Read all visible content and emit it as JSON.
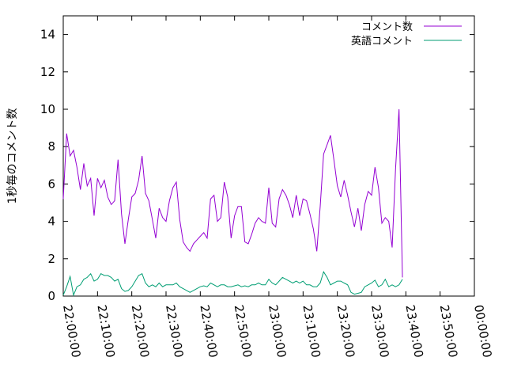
{
  "chart_data": {
    "type": "line",
    "title": "",
    "xlabel": "",
    "ylabel": "1秒毎のコメント数",
    "ylim": [
      0,
      15
    ],
    "yticks": [
      "0",
      "2",
      "4",
      "6",
      "8",
      "10",
      "12",
      "14"
    ],
    "xticks": [
      "22:00:00",
      "22:10:00",
      "22:20:00",
      "22:30:00",
      "22:40:00",
      "22:50:00",
      "23:00:00",
      "23:10:00",
      "23:20:00",
      "23:30:00",
      "23:40:00",
      "23:50:00",
      "00:00:00"
    ],
    "x_range_minutes": [
      0,
      120
    ],
    "grid": false,
    "legend_position": "top-right",
    "series": [
      {
        "name": "コメント数",
        "color": "#9400d3",
        "points": [
          [
            0,
            5.2
          ],
          [
            1,
            8.7
          ],
          [
            2,
            7.5
          ],
          [
            3,
            7.8
          ],
          [
            4,
            6.9
          ],
          [
            5,
            5.7
          ],
          [
            6,
            7.1
          ],
          [
            7,
            5.9
          ],
          [
            8,
            6.3
          ],
          [
            9,
            4.3
          ],
          [
            10,
            6.3
          ],
          [
            11,
            5.8
          ],
          [
            12,
            6.2
          ],
          [
            13,
            5.3
          ],
          [
            14,
            4.9
          ],
          [
            15,
            5.1
          ],
          [
            16,
            7.3
          ],
          [
            17,
            4.4
          ],
          [
            18,
            2.8
          ],
          [
            19,
            4.1
          ],
          [
            20,
            5.3
          ],
          [
            21,
            5.5
          ],
          [
            22,
            6.2
          ],
          [
            23,
            7.5
          ],
          [
            24,
            5.5
          ],
          [
            25,
            5.1
          ],
          [
            26,
            4.1
          ],
          [
            27,
            3.1
          ],
          [
            28,
            4.7
          ],
          [
            29,
            4.2
          ],
          [
            30,
            4.0
          ],
          [
            31,
            5.1
          ],
          [
            32,
            5.8
          ],
          [
            33,
            6.1
          ],
          [
            34,
            4.1
          ],
          [
            35,
            2.9
          ],
          [
            36,
            2.6
          ],
          [
            37,
            2.4
          ],
          [
            38,
            2.8
          ],
          [
            39,
            3.0
          ],
          [
            40,
            3.2
          ],
          [
            41,
            3.4
          ],
          [
            42,
            3.1
          ],
          [
            43,
            5.2
          ],
          [
            44,
            5.4
          ],
          [
            45,
            4.0
          ],
          [
            46,
            4.2
          ],
          [
            47,
            6.1
          ],
          [
            48,
            5.3
          ],
          [
            49,
            3.1
          ],
          [
            50,
            4.3
          ],
          [
            51,
            4.8
          ],
          [
            52,
            4.8
          ],
          [
            53,
            2.9
          ],
          [
            54,
            2.8
          ],
          [
            55,
            3.3
          ],
          [
            56,
            3.9
          ],
          [
            57,
            4.2
          ],
          [
            58,
            4.0
          ],
          [
            59,
            3.9
          ],
          [
            60,
            5.8
          ],
          [
            61,
            3.9
          ],
          [
            62,
            3.7
          ],
          [
            63,
            5.2
          ],
          [
            64,
            5.7
          ],
          [
            65,
            5.4
          ],
          [
            66,
            4.9
          ],
          [
            67,
            4.2
          ],
          [
            68,
            5.4
          ],
          [
            69,
            4.3
          ],
          [
            70,
            5.2
          ],
          [
            71,
            5.1
          ],
          [
            72,
            4.4
          ],
          [
            73,
            3.6
          ],
          [
            74,
            2.4
          ],
          [
            75,
            4.8
          ],
          [
            76,
            7.6
          ],
          [
            77,
            8.1
          ],
          [
            78,
            8.6
          ],
          [
            79,
            7.3
          ],
          [
            80,
            5.9
          ],
          [
            81,
            5.3
          ],
          [
            82,
            6.2
          ],
          [
            83,
            5.4
          ],
          [
            84,
            4.5
          ],
          [
            85,
            3.7
          ],
          [
            86,
            4.7
          ],
          [
            87,
            3.5
          ],
          [
            88,
            4.9
          ],
          [
            89,
            5.6
          ],
          [
            90,
            5.4
          ],
          [
            91,
            6.9
          ],
          [
            92,
            5.8
          ],
          [
            93,
            3.9
          ],
          [
            94,
            4.2
          ],
          [
            95,
            4.0
          ],
          [
            96,
            2.6
          ],
          [
            97,
            6.8
          ],
          [
            98,
            10.0
          ],
          [
            99,
            1.0
          ]
        ]
      },
      {
        "name": "英語コメント",
        "color": "#009e73",
        "points": [
          [
            0,
            0.05
          ],
          [
            1,
            0.5
          ],
          [
            2,
            1.05
          ],
          [
            3,
            0.05
          ],
          [
            4,
            0.5
          ],
          [
            5,
            0.6
          ],
          [
            6,
            0.9
          ],
          [
            7,
            1.0
          ],
          [
            8,
            1.2
          ],
          [
            9,
            0.8
          ],
          [
            10,
            0.9
          ],
          [
            11,
            1.2
          ],
          [
            12,
            1.1
          ],
          [
            13,
            1.1
          ],
          [
            14,
            1.0
          ],
          [
            15,
            0.8
          ],
          [
            16,
            0.9
          ],
          [
            17,
            0.4
          ],
          [
            18,
            0.25
          ],
          [
            19,
            0.3
          ],
          [
            20,
            0.5
          ],
          [
            21,
            0.8
          ],
          [
            22,
            1.1
          ],
          [
            23,
            1.2
          ],
          [
            24,
            0.7
          ],
          [
            25,
            0.5
          ],
          [
            26,
            0.6
          ],
          [
            27,
            0.5
          ],
          [
            28,
            0.7
          ],
          [
            29,
            0.5
          ],
          [
            30,
            0.6
          ],
          [
            31,
            0.6
          ],
          [
            32,
            0.6
          ],
          [
            33,
            0.7
          ],
          [
            34,
            0.5
          ],
          [
            35,
            0.4
          ],
          [
            36,
            0.3
          ],
          [
            37,
            0.2
          ],
          [
            38,
            0.3
          ],
          [
            39,
            0.4
          ],
          [
            40,
            0.5
          ],
          [
            41,
            0.55
          ],
          [
            42,
            0.5
          ],
          [
            43,
            0.7
          ],
          [
            44,
            0.6
          ],
          [
            45,
            0.5
          ],
          [
            46,
            0.6
          ],
          [
            47,
            0.6
          ],
          [
            48,
            0.5
          ],
          [
            49,
            0.5
          ],
          [
            50,
            0.55
          ],
          [
            51,
            0.6
          ],
          [
            52,
            0.5
          ],
          [
            53,
            0.55
          ],
          [
            54,
            0.5
          ],
          [
            55,
            0.6
          ],
          [
            56,
            0.6
          ],
          [
            57,
            0.7
          ],
          [
            58,
            0.6
          ],
          [
            59,
            0.6
          ],
          [
            60,
            0.9
          ],
          [
            61,
            0.7
          ],
          [
            62,
            0.6
          ],
          [
            63,
            0.8
          ],
          [
            64,
            1.0
          ],
          [
            65,
            0.9
          ],
          [
            66,
            0.8
          ],
          [
            67,
            0.7
          ],
          [
            68,
            0.8
          ],
          [
            69,
            0.7
          ],
          [
            70,
            0.8
          ],
          [
            71,
            0.6
          ],
          [
            72,
            0.6
          ],
          [
            73,
            0.5
          ],
          [
            74,
            0.5
          ],
          [
            75,
            0.7
          ],
          [
            76,
            1.3
          ],
          [
            77,
            1.0
          ],
          [
            78,
            0.6
          ],
          [
            79,
            0.7
          ],
          [
            80,
            0.8
          ],
          [
            81,
            0.8
          ],
          [
            82,
            0.7
          ],
          [
            83,
            0.6
          ],
          [
            84,
            0.2
          ],
          [
            85,
            0.1
          ],
          [
            86,
            0.15
          ],
          [
            87,
            0.2
          ],
          [
            88,
            0.5
          ],
          [
            89,
            0.6
          ],
          [
            90,
            0.7
          ],
          [
            91,
            0.85
          ],
          [
            92,
            0.5
          ],
          [
            93,
            0.6
          ],
          [
            94,
            0.9
          ],
          [
            95,
            0.5
          ],
          [
            96,
            0.6
          ],
          [
            97,
            0.5
          ],
          [
            98,
            0.6
          ],
          [
            99,
            0.9
          ]
        ]
      }
    ]
  }
}
